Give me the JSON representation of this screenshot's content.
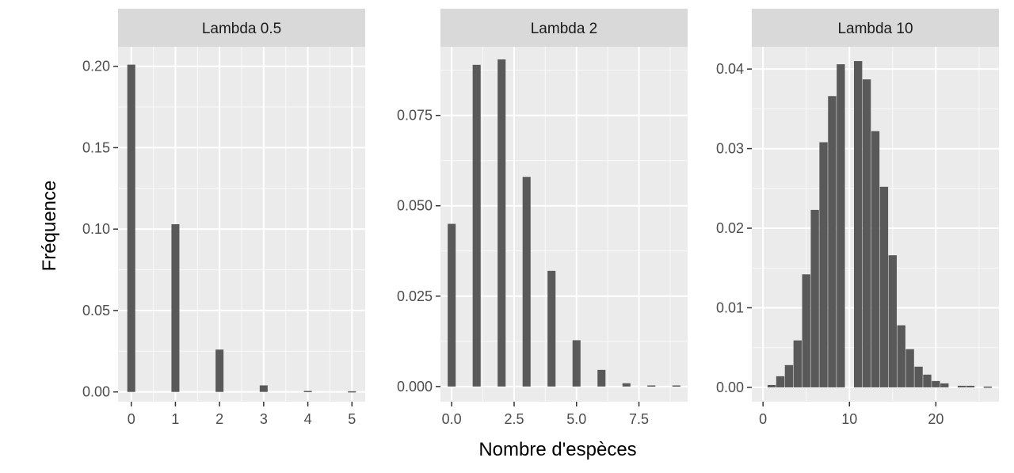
{
  "figure": {
    "ylabel": "Fréquence",
    "xlabel": "Nombre d'espèces",
    "colors": {
      "panel_bg": "#ebebeb",
      "strip_bg": "#d9d9d9",
      "grid": "#ffffff",
      "bar": "#595959"
    }
  },
  "chart_data": [
    {
      "type": "bar",
      "title": "Lambda 0.5",
      "xlim": [
        -0.3,
        5.3
      ],
      "ylim": [
        -0.006,
        0.212
      ],
      "x_ticks": [
        0,
        1,
        2,
        3,
        4,
        5
      ],
      "x_tick_labels": [
        "0",
        "1",
        "2",
        "3",
        "4",
        "5"
      ],
      "y_ticks": [
        0,
        0.05,
        0.1,
        0.15,
        0.2
      ],
      "y_tick_labels": [
        "0.00",
        "0.05",
        "0.10",
        "0.15",
        "0.20"
      ],
      "bar_width": 0.18,
      "x": [
        0,
        1,
        2,
        3,
        4,
        5
      ],
      "values": [
        0.201,
        0.103,
        0.026,
        0.004,
        0.0006,
        0.0004
      ]
    },
    {
      "type": "bar",
      "title": "Lambda 2",
      "xlim": [
        -0.45,
        9.45
      ],
      "ylim": [
        -0.0042,
        0.094
      ],
      "x_ticks": [
        0,
        2.5,
        5,
        7.5
      ],
      "x_tick_labels": [
        "0.0",
        "2.5",
        "5.0",
        "7.5"
      ],
      "y_ticks": [
        0,
        0.025,
        0.05,
        0.075
      ],
      "y_tick_labels": [
        "0.000",
        "0.025",
        "0.050",
        "0.075"
      ],
      "bar_width": 0.32,
      "x": [
        0,
        1,
        2,
        3,
        4,
        5,
        6,
        7,
        8,
        9
      ],
      "values": [
        0.045,
        0.089,
        0.0905,
        0.058,
        0.032,
        0.0128,
        0.0046,
        0.0009,
        0.0003,
        0.0003
      ]
    },
    {
      "type": "bar",
      "title": "Lambda 10",
      "xlim": [
        -1.3,
        27.3
      ],
      "ylim": [
        -0.0018,
        0.0428
      ],
      "x_ticks": [
        0,
        10,
        20
      ],
      "x_tick_labels": [
        "0",
        "10",
        "20"
      ],
      "y_ticks": [
        0,
        0.01,
        0.02,
        0.03,
        0.04
      ],
      "y_tick_labels": [
        "0.00",
        "0.01",
        "0.02",
        "0.03",
        "0.04"
      ],
      "bar_width": 0.95,
      "x": [
        1,
        2,
        3,
        4,
        5,
        6,
        7,
        8,
        9,
        10,
        11,
        12,
        13,
        14,
        15,
        16,
        17,
        18,
        19,
        20,
        21,
        22,
        23,
        24,
        25,
        26
      ],
      "values": [
        0.0003,
        0.0014,
        0.0028,
        0.0059,
        0.0142,
        0.0223,
        0.0308,
        0.0366,
        0.0406,
        0.0,
        0.041,
        0.0387,
        0.0322,
        0.0252,
        0.0166,
        0.0078,
        0.0048,
        0.0026,
        0.0016,
        0.0008,
        0.0005,
        0.0,
        0.0002,
        0.0002,
        0.0,
        0.0001
      ]
    }
  ]
}
